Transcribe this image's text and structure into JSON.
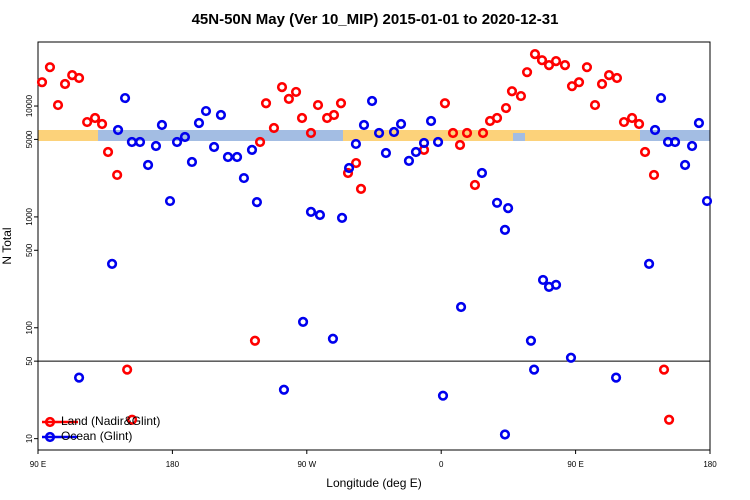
{
  "chart_data": {
    "type": "scatter",
    "title": "45N-50N May (Ver 10_MIP)   2015-01-01 to 2020-12-31",
    "x_label": "Longitude (deg E)",
    "y_label": "N Total",
    "log_y": true,
    "xlim": [
      90,
      540
    ],
    "ylim": [
      7.9,
      37800
    ],
    "xticks": [
      {
        "value": 90,
        "label": "90 E"
      },
      180,
      {
        "value": 270,
        "label": "90 W"
      },
      {
        "value": 360,
        "label": "0"
      },
      {
        "value": 450,
        "label": "90 E"
      },
      {
        "value": 540,
        "label": "180"
      }
    ],
    "yticks": [
      10,
      50,
      100,
      500,
      1000,
      5000,
      10000
    ],
    "hline": 50,
    "legend": "bottom-left",
    "series": [
      {
        "name": "Land (Nadir&Glint)",
        "color": "#ff0000",
        "x": [
          92.7,
          98,
          103.4,
          108.1,
          112.9,
          117.5,
          122.9,
          128.2,
          132.9,
          136.9,
          143,
          149.7,
          153,
          235.3,
          238.7,
          242.7,
          248,
          253.4,
          258,
          262.8,
          266.8,
          272.8,
          277.5,
          283.6,
          288.2,
          292.9,
          297.6,
          303,
          306.3,
          348.5,
          362.5,
          367.9,
          372.6,
          377.3,
          382.6,
          388,
          392.7,
          397.4,
          403.4,
          407.4,
          413.4,
          417.5,
          422.8,
          427.5,
          432.2,
          436.9,
          442.9,
          447.6,
          452.3,
          457.6,
          463,
          467.7,
          472.4,
          477.7,
          482.4,
          487.8,
          492.5,
          496.5,
          502.5,
          509.2,
          512.6
        ],
        "values": [
          16400,
          22400,
          10200,
          15800,
          19000,
          17900,
          7170,
          7800,
          6890,
          3850,
          2390,
          41.9,
          14.8,
          76.4,
          4740,
          10600,
          6340,
          14800,
          11600,
          13400,
          7800,
          5710,
          10200,
          7800,
          8300,
          10600,
          2490,
          3060,
          1790,
          4020,
          10600,
          5710,
          4450,
          5710,
          1940,
          5710,
          7330,
          7800,
          9590,
          13600,
          12300,
          20200,
          29400,
          25900,
          23400,
          25400,
          23400,
          15100,
          16400,
          22400,
          10200,
          15800,
          19000,
          17900,
          7170,
          7800,
          6890,
          3850,
          2390,
          41.9,
          14.8
        ]
      },
      {
        "name": "Ocean (Glint)",
        "color": "#0000ee",
        "x": [
          117.5,
          139.6,
          143.6,
          148.3,
          152.9,
          158.3,
          163.7,
          169,
          173,
          178.4,
          183.1,
          188.4,
          193.1,
          197.8,
          202.5,
          207.9,
          212.5,
          217.2,
          223.3,
          227.9,
          233.3,
          236.6,
          254.7,
          267.5,
          272.8,
          278.8,
          287.5,
          293.6,
          298.3,
          302.9,
          308.3,
          313.7,
          318.4,
          323,
          328.4,
          333.1,
          338.4,
          343.1,
          348.5,
          353.2,
          357.9,
          361.2,
          373.3,
          387.3,
          397.4,
          402.7,
          402.7,
          404.8,
          420.1,
          422.2,
          428.2,
          432.2,
          436.9,
          446.9,
          477.1,
          499.2,
          503.2,
          507.2,
          511.9,
          516.6,
          523.3,
          528,
          532.6,
          538
        ],
        "values": [
          35.5,
          377,
          6080,
          11800,
          4740,
          4740,
          2940,
          4360,
          6740,
          1390,
          4740,
          5260,
          3130,
          7030,
          9010,
          4270,
          8300,
          3470,
          3470,
          2240,
          4020,
          1360,
          27.6,
          113,
          1110,
          1040,
          79.6,
          980,
          2760,
          4550,
          6740,
          11100,
          5710,
          3770,
          5830,
          6890,
          3200,
          3850,
          4640,
          7330,
          4740,
          24.4,
          154,
          2490,
          1340,
          764,
          10.9,
          1200,
          76.4,
          41.9,
          270,
          234,
          244,
          53.7,
          35.5,
          377,
          6080,
          11800,
          4740,
          4740,
          2940,
          4360,
          7030,
          1390
        ]
      }
    ]
  }
}
